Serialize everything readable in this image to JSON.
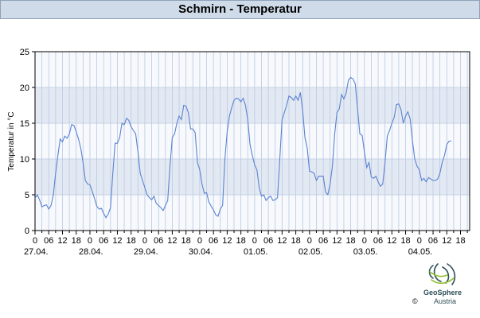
{
  "header": {
    "title": "Schmirn - Temperatur"
  },
  "footer": {
    "copyright": "©",
    "brand": "GeoSphere",
    "brand_sub": "Austria"
  },
  "colors": {
    "line": "#5a82d2",
    "band": "#e3e9f2",
    "grid": "#b9c9e2",
    "plot_bg": "#f7f9fc"
  },
  "logo_icon": "geosphere-logo-icon",
  "chart_data": {
    "type": "line",
    "title": "Schmirn - Temperatur",
    "xlabel": "",
    "ylabel": "Temperatur in °C",
    "ylim": [
      0,
      25
    ],
    "yticks": [
      0,
      5,
      10,
      15,
      20,
      25
    ],
    "grid": true,
    "x_unit": "hours",
    "xlim": [
      0,
      190
    ],
    "hour_tick_labels": [
      "0",
      "06",
      "12",
      "18"
    ],
    "day_labels": [
      "27.04.",
      "28.04.",
      "29.04.",
      "30.04.",
      "01.05.",
      "02.05.",
      "03.05.",
      "04.05."
    ],
    "series": [
      {
        "points": [
          [
            0,
            4.5
          ],
          [
            1,
            5
          ],
          [
            2,
            4.3
          ],
          [
            3,
            3.3
          ],
          [
            4,
            3.5
          ],
          [
            5,
            3.6
          ],
          [
            6,
            3.0
          ],
          [
            7,
            3.5
          ],
          [
            8,
            5
          ],
          [
            9,
            8
          ],
          [
            10,
            10.5
          ],
          [
            11,
            12.8
          ],
          [
            12,
            12.4
          ],
          [
            13,
            13.2
          ],
          [
            14,
            12.9
          ],
          [
            15,
            13.5
          ],
          [
            16,
            14.8
          ],
          [
            17,
            14.7
          ],
          [
            18,
            13.8
          ],
          [
            19,
            12.8
          ],
          [
            20,
            11.5
          ],
          [
            21,
            9.5
          ],
          [
            22,
            7
          ],
          [
            23,
            6.5
          ],
          [
            24,
            6.4
          ],
          [
            25,
            5.5
          ],
          [
            26,
            4.5
          ],
          [
            27,
            3.4
          ],
          [
            28,
            3.0
          ],
          [
            29,
            3.1
          ],
          [
            30,
            2.4
          ],
          [
            31,
            1.8
          ],
          [
            32,
            2.3
          ],
          [
            33,
            3.2
          ],
          [
            34,
            8
          ],
          [
            35,
            12.2
          ],
          [
            36,
            12.2
          ],
          [
            37,
            13
          ],
          [
            38,
            15
          ],
          [
            39,
            14.8
          ],
          [
            40,
            15.7
          ],
          [
            41,
            15.4
          ],
          [
            42,
            14.5
          ],
          [
            43,
            14
          ],
          [
            44,
            13.5
          ],
          [
            45,
            11
          ],
          [
            46,
            8
          ],
          [
            47,
            7
          ],
          [
            48,
            6
          ],
          [
            49,
            5
          ],
          [
            50,
            4.6
          ],
          [
            51,
            4.3
          ],
          [
            52,
            4.8
          ],
          [
            53,
            3.8
          ],
          [
            54,
            3.5
          ],
          [
            55,
            3.2
          ],
          [
            56,
            2.8
          ],
          [
            57,
            3.5
          ],
          [
            58,
            4.2
          ],
          [
            59,
            9
          ],
          [
            60,
            13
          ],
          [
            61,
            13.5
          ],
          [
            62,
            15
          ],
          [
            63,
            16
          ],
          [
            64,
            15.5
          ],
          [
            65,
            17.5
          ],
          [
            66,
            17.4
          ],
          [
            67,
            16.5
          ],
          [
            68,
            14.2
          ],
          [
            69,
            14.2
          ],
          [
            70,
            13.7
          ],
          [
            71,
            9.5
          ],
          [
            72,
            8.5
          ],
          [
            73,
            6.5
          ],
          [
            74,
            5.2
          ],
          [
            75,
            5.3
          ],
          [
            76,
            4
          ],
          [
            77,
            3.4
          ],
          [
            78,
            2.9
          ],
          [
            79,
            2.2
          ],
          [
            80,
            2
          ],
          [
            81,
            3
          ],
          [
            82,
            3.5
          ],
          [
            83,
            10
          ],
          [
            84,
            13.8
          ],
          [
            85,
            16
          ],
          [
            86,
            17.2
          ],
          [
            87,
            18.2
          ],
          [
            88,
            18.5
          ],
          [
            89,
            18.4
          ],
          [
            90,
            18
          ],
          [
            91,
            18.5
          ],
          [
            92,
            17.5
          ],
          [
            93,
            15.5
          ],
          [
            94,
            12
          ],
          [
            95,
            10.5
          ],
          [
            96,
            9.2
          ],
          [
            97,
            8.5
          ],
          [
            98,
            6
          ],
          [
            99,
            4.8
          ],
          [
            100,
            5
          ],
          [
            101,
            4.2
          ],
          [
            102,
            4.6
          ],
          [
            103,
            4.8
          ],
          [
            104,
            4.2
          ],
          [
            105,
            4.3
          ],
          [
            106,
            4.6
          ],
          [
            107,
            10
          ],
          [
            108,
            15.5
          ],
          [
            109,
            16.5
          ],
          [
            110,
            17.5
          ],
          [
            111,
            18.8
          ],
          [
            112,
            18.6
          ],
          [
            113,
            18.2
          ],
          [
            114,
            18.8
          ],
          [
            115,
            18.2
          ],
          [
            116,
            19.3
          ],
          [
            117,
            16.8
          ],
          [
            118,
            13
          ],
          [
            119,
            11.5
          ],
          [
            120,
            8.3
          ],
          [
            121,
            8.2
          ],
          [
            122,
            8
          ],
          [
            123,
            7
          ],
          [
            124,
            7.6
          ],
          [
            125,
            7.6
          ],
          [
            126,
            7.6
          ],
          [
            127,
            5.4
          ],
          [
            128,
            5
          ],
          [
            129,
            6.5
          ],
          [
            130,
            9
          ],
          [
            131,
            13.5
          ],
          [
            132,
            16.5
          ],
          [
            133,
            17
          ],
          [
            134,
            19
          ],
          [
            135,
            18.4
          ],
          [
            136,
            19.2
          ],
          [
            137,
            21
          ],
          [
            138,
            21.4
          ],
          [
            139,
            21.2
          ],
          [
            140,
            20.5
          ],
          [
            141,
            17
          ],
          [
            142,
            13.5
          ],
          [
            143,
            13.3
          ],
          [
            144,
            11
          ],
          [
            145,
            8.8
          ],
          [
            146,
            9.5
          ],
          [
            147,
            7.5
          ],
          [
            148,
            7.3
          ],
          [
            149,
            7.6
          ],
          [
            150,
            6.8
          ],
          [
            151,
            6.2
          ],
          [
            152,
            6.5
          ],
          [
            153,
            9.5
          ],
          [
            154,
            13.2
          ],
          [
            155,
            14
          ],
          [
            156,
            15
          ],
          [
            157,
            15.8
          ],
          [
            158,
            17.6
          ],
          [
            159,
            17.7
          ],
          [
            160,
            16.9
          ],
          [
            161,
            15
          ],
          [
            162,
            16
          ],
          [
            163,
            16.6
          ],
          [
            164,
            15.6
          ],
          [
            165,
            12.5
          ],
          [
            166,
            10
          ],
          [
            167,
            9
          ],
          [
            168,
            8.5
          ],
          [
            169,
            7
          ],
          [
            170,
            7.3
          ],
          [
            171,
            6.8
          ],
          [
            172,
            7.4
          ],
          [
            173,
            7.2
          ],
          [
            174,
            7.0
          ],
          [
            175,
            7.0
          ],
          [
            176,
            7.2
          ],
          [
            177,
            8
          ],
          [
            178,
            9.5
          ],
          [
            179,
            10.5
          ],
          [
            180,
            12
          ],
          [
            181,
            12.5
          ],
          [
            182,
            12.5
          ]
        ]
      }
    ]
  }
}
